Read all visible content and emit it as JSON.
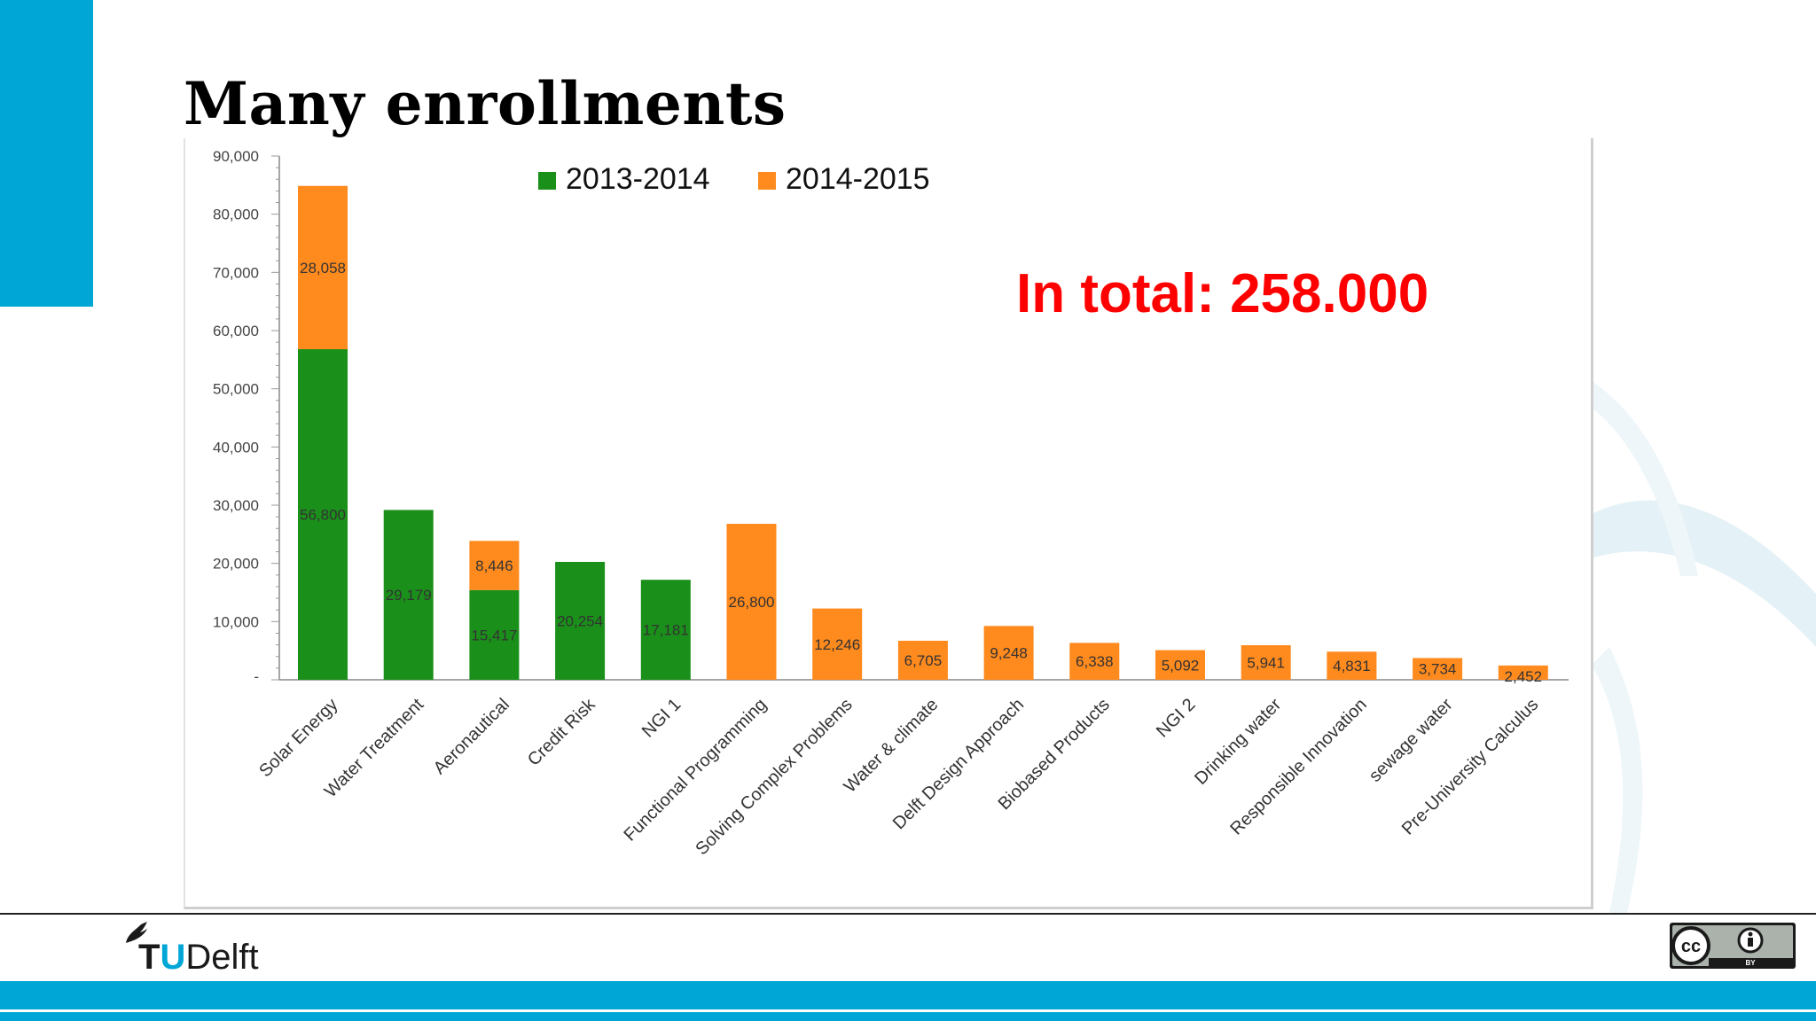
{
  "slide": {
    "title": "Many enrollments",
    "total_text": "In total: 258.000"
  },
  "footer": {
    "logo_t": "T",
    "logo_u": "U",
    "logo_rest": "Delft",
    "license": "BY"
  },
  "colors": {
    "accent": "#00a6d6",
    "series_2013_2014": "#1a8f1a",
    "series_2014_2015": "#ff8a1d",
    "total_text": "#ff0000"
  },
  "chart_data": {
    "type": "bar",
    "stacked": true,
    "categories": [
      "Solar Energy",
      "Water Treatment",
      "Aeronautical",
      "Credit Risk",
      "NGI 1",
      "Functional Programming",
      "Solving Complex Problems",
      "Water & climate",
      "Delft Design Approach",
      "Biobased Products",
      "NGI 2",
      "Drinking water",
      "Responsible Innovation",
      "sewage water",
      "Pre-University Calculus"
    ],
    "series": [
      {
        "name": "2013-2014",
        "values": [
          56800,
          29179,
          15417,
          20254,
          17181,
          null,
          null,
          null,
          null,
          null,
          null,
          null,
          null,
          null,
          null
        ],
        "labels": [
          "56,800",
          "29,179",
          "15,417",
          "20,254",
          "17,181",
          "",
          "",
          "",
          "",
          "",
          "",
          "",
          "",
          "",
          ""
        ]
      },
      {
        "name": "2014-2015",
        "values": [
          28058,
          null,
          8446,
          null,
          null,
          26800,
          12246,
          6705,
          9248,
          6338,
          5092,
          5941,
          4831,
          3734,
          2452
        ],
        "labels": [
          "28,058",
          "",
          "8,446",
          "",
          "",
          "26,800",
          "12,246",
          "6,705",
          "9,248",
          "6,338",
          "5,092",
          "5,941",
          "4,831",
          "3,734",
          "2,452"
        ]
      }
    ],
    "ylim": [
      0,
      90000
    ],
    "y_ticks": [
      0,
      10000,
      20000,
      30000,
      40000,
      50000,
      60000,
      70000,
      80000,
      90000
    ],
    "y_tick_labels": [
      "-",
      "10,000",
      "20,000",
      "30,000",
      "40,000",
      "50,000",
      "60,000",
      "70,000",
      "80,000",
      "90,000"
    ],
    "legend_position": "top",
    "grid": false
  }
}
